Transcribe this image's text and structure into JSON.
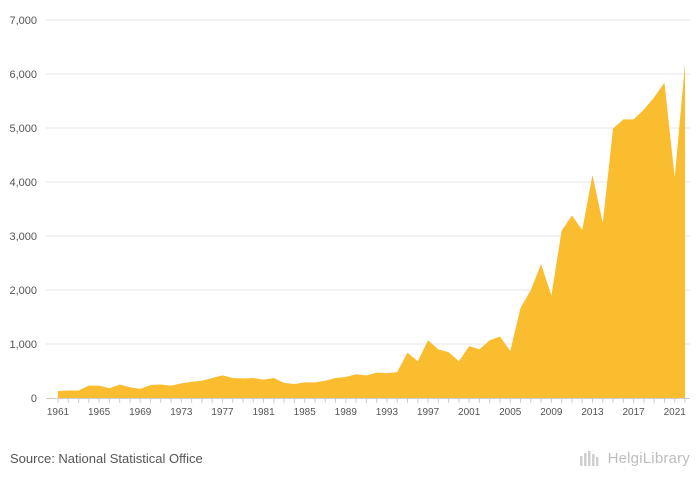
{
  "chart_data": {
    "type": "area",
    "color": "#f9bd2f",
    "x_tick_labels": [
      "1961",
      "1965",
      "1969",
      "1973",
      "1977",
      "1981",
      "1985",
      "1989",
      "1993",
      "1997",
      "2001",
      "2005",
      "2009",
      "2013",
      "2017",
      "2021"
    ],
    "y_tick_labels": [
      "0",
      "1,000",
      "2,000",
      "3,000",
      "4,000",
      "5,000",
      "6,000",
      "7,000"
    ],
    "ylim": [
      0,
      7000
    ],
    "grid": true,
    "x": [
      1961,
      1962,
      1963,
      1964,
      1965,
      1966,
      1967,
      1968,
      1969,
      1970,
      1971,
      1972,
      1973,
      1974,
      1975,
      1976,
      1977,
      1978,
      1979,
      1980,
      1981,
      1982,
      1983,
      1984,
      1985,
      1986,
      1987,
      1988,
      1989,
      1990,
      1991,
      1992,
      1993,
      1994,
      1995,
      1996,
      1997,
      1998,
      1999,
      2000,
      2001,
      2002,
      2003,
      2004,
      2005,
      2006,
      2007,
      2008,
      2009,
      2010,
      2011,
      2012,
      2013,
      2014,
      2015,
      2016,
      2017,
      2018,
      2019,
      2020,
      2021,
      2022
    ],
    "values": [
      130,
      140,
      140,
      230,
      230,
      180,
      250,
      200,
      170,
      240,
      250,
      230,
      270,
      300,
      320,
      370,
      420,
      370,
      360,
      370,
      340,
      370,
      280,
      260,
      290,
      290,
      320,
      370,
      390,
      440,
      420,
      470,
      460,
      480,
      840,
      680,
      1070,
      900,
      850,
      680,
      960,
      900,
      1070,
      1140,
      870,
      1670,
      2000,
      2480,
      1900,
      3100,
      3380,
      3110,
      4130,
      3240,
      4990,
      5160,
      5160,
      5340,
      5570,
      5840,
      4080,
      6190
    ]
  },
  "footer": {
    "source": "Source: National Statistical Office",
    "logo_text": "HelgiLibrary"
  }
}
